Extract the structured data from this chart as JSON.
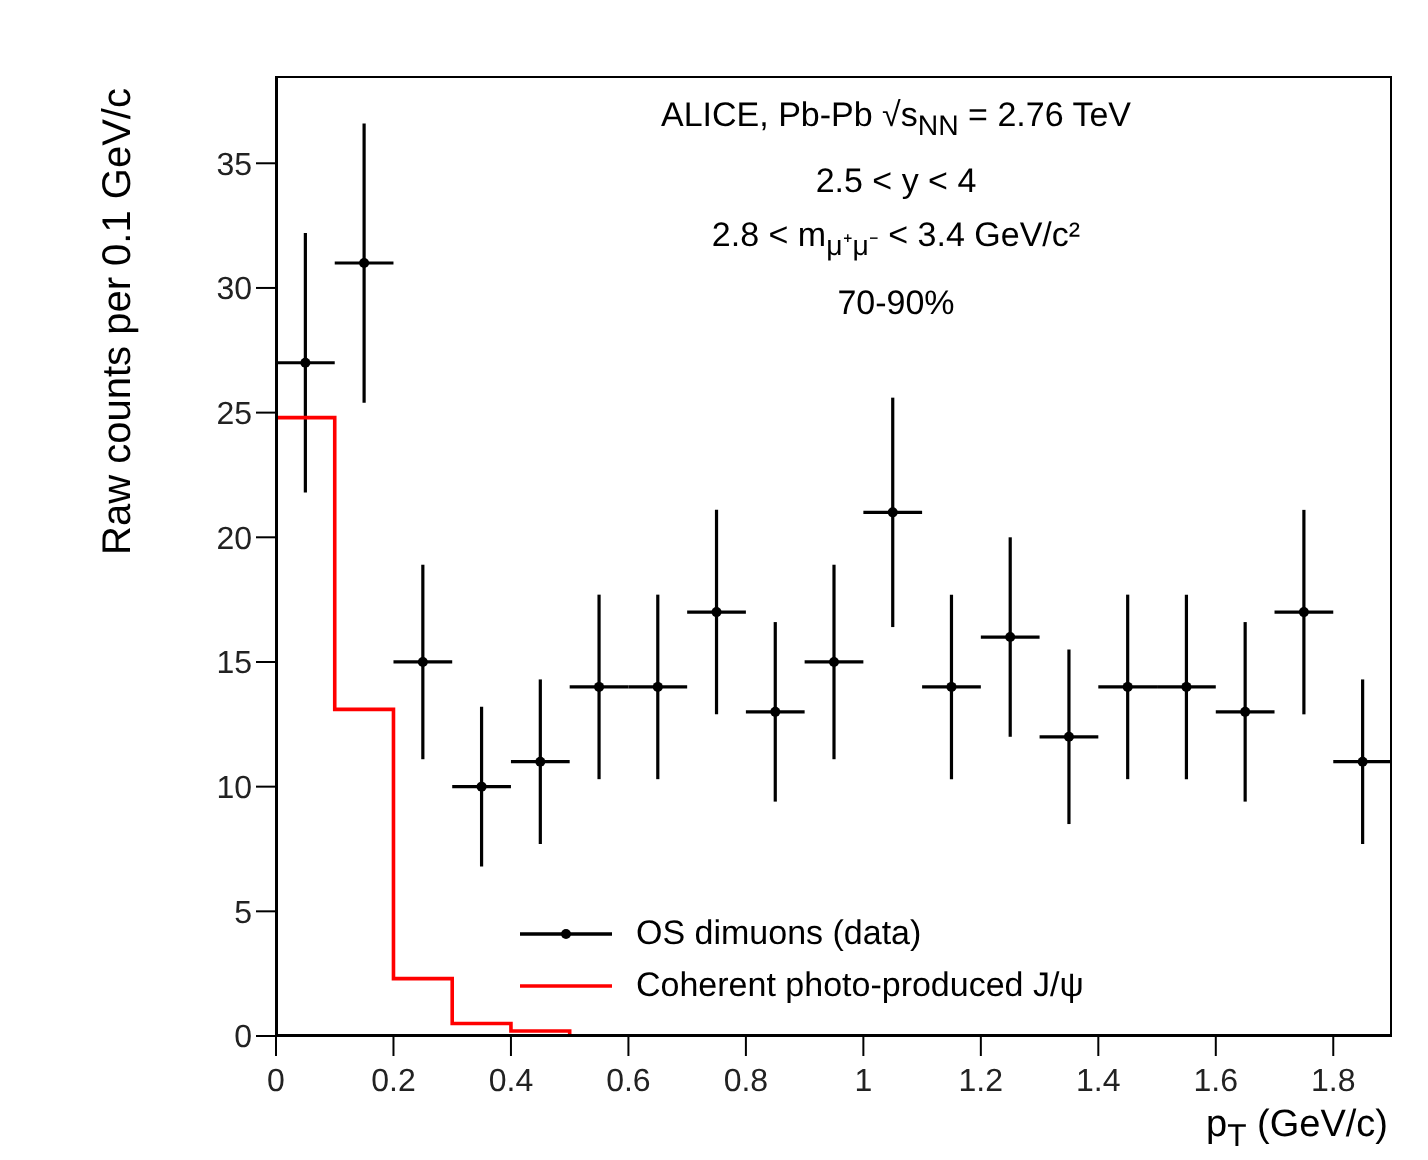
{
  "chart_data": {
    "type": "scatter",
    "xlabel": "p$_{T}$ (GeV/c)",
    "ylabel": "Raw counts per 0.1 GeV/c",
    "annotations": [
      "ALICE, Pb-Pb √s$_{NN}$ = 2.76 TeV",
      "2.5 < y < 4",
      "2.8 < m$_{μ⁺μ⁻}$ < 3.4 GeV/c²",
      "70-90%"
    ],
    "xlim": [
      0,
      1.9
    ],
    "xticks": [
      0,
      0.2,
      0.4,
      0.6,
      0.8,
      1,
      1.2,
      1.4,
      1.6,
      1.8
    ],
    "ylim": [
      0,
      38.5
    ],
    "yticks": [
      0,
      5,
      10,
      15,
      20,
      25,
      30,
      35
    ],
    "grid": false,
    "legend": "bottom",
    "marker": "circle",
    "series": [
      {
        "name": "OS dimuons (data)",
        "color": "#000000",
        "x": [
          0.05,
          0.15,
          0.25,
          0.35,
          0.45,
          0.55,
          0.65,
          0.75,
          0.85,
          0.95,
          1.05,
          1.15,
          1.25,
          1.35,
          1.45,
          1.55,
          1.65,
          1.75,
          1.85
        ],
        "values": [
          27,
          31,
          15,
          10,
          11,
          14,
          14,
          17,
          13,
          15,
          21,
          14,
          16,
          12,
          14,
          14,
          13,
          17,
          11
        ],
        "errors": [
          5.2,
          5.6,
          3.9,
          3.2,
          3.3,
          3.7,
          3.7,
          4.1,
          3.6,
          3.9,
          4.6,
          3.7,
          4.0,
          3.5,
          3.7,
          3.7,
          3.6,
          4.1,
          3.3
        ],
        "xerrors": [
          0.05,
          0.05,
          0.05,
          0.05,
          0.05,
          0.05,
          0.05,
          0.05,
          0.05,
          0.05,
          0.05,
          0.05,
          0.05,
          0.05,
          0.05,
          0.05,
          0.05,
          0.05,
          0.05
        ]
      },
      {
        "name": "Coherent photo-produced J/ψ",
        "type": "histogram",
        "color": "#ff0000",
        "bins": [
          0,
          0.1,
          0.2,
          0.3,
          0.4,
          0.5,
          0.6,
          0.7,
          0.8,
          0.9,
          1,
          1.1,
          1.2,
          1.3,
          1.4,
          1.5,
          1.6,
          1.7,
          1.8,
          1.9
        ],
        "values": [
          24.8,
          13.1,
          2.3,
          0.5,
          0.2,
          0,
          0,
          0,
          0,
          0,
          0,
          0,
          0,
          0,
          0,
          0,
          0,
          0,
          0
        ]
      }
    ]
  }
}
